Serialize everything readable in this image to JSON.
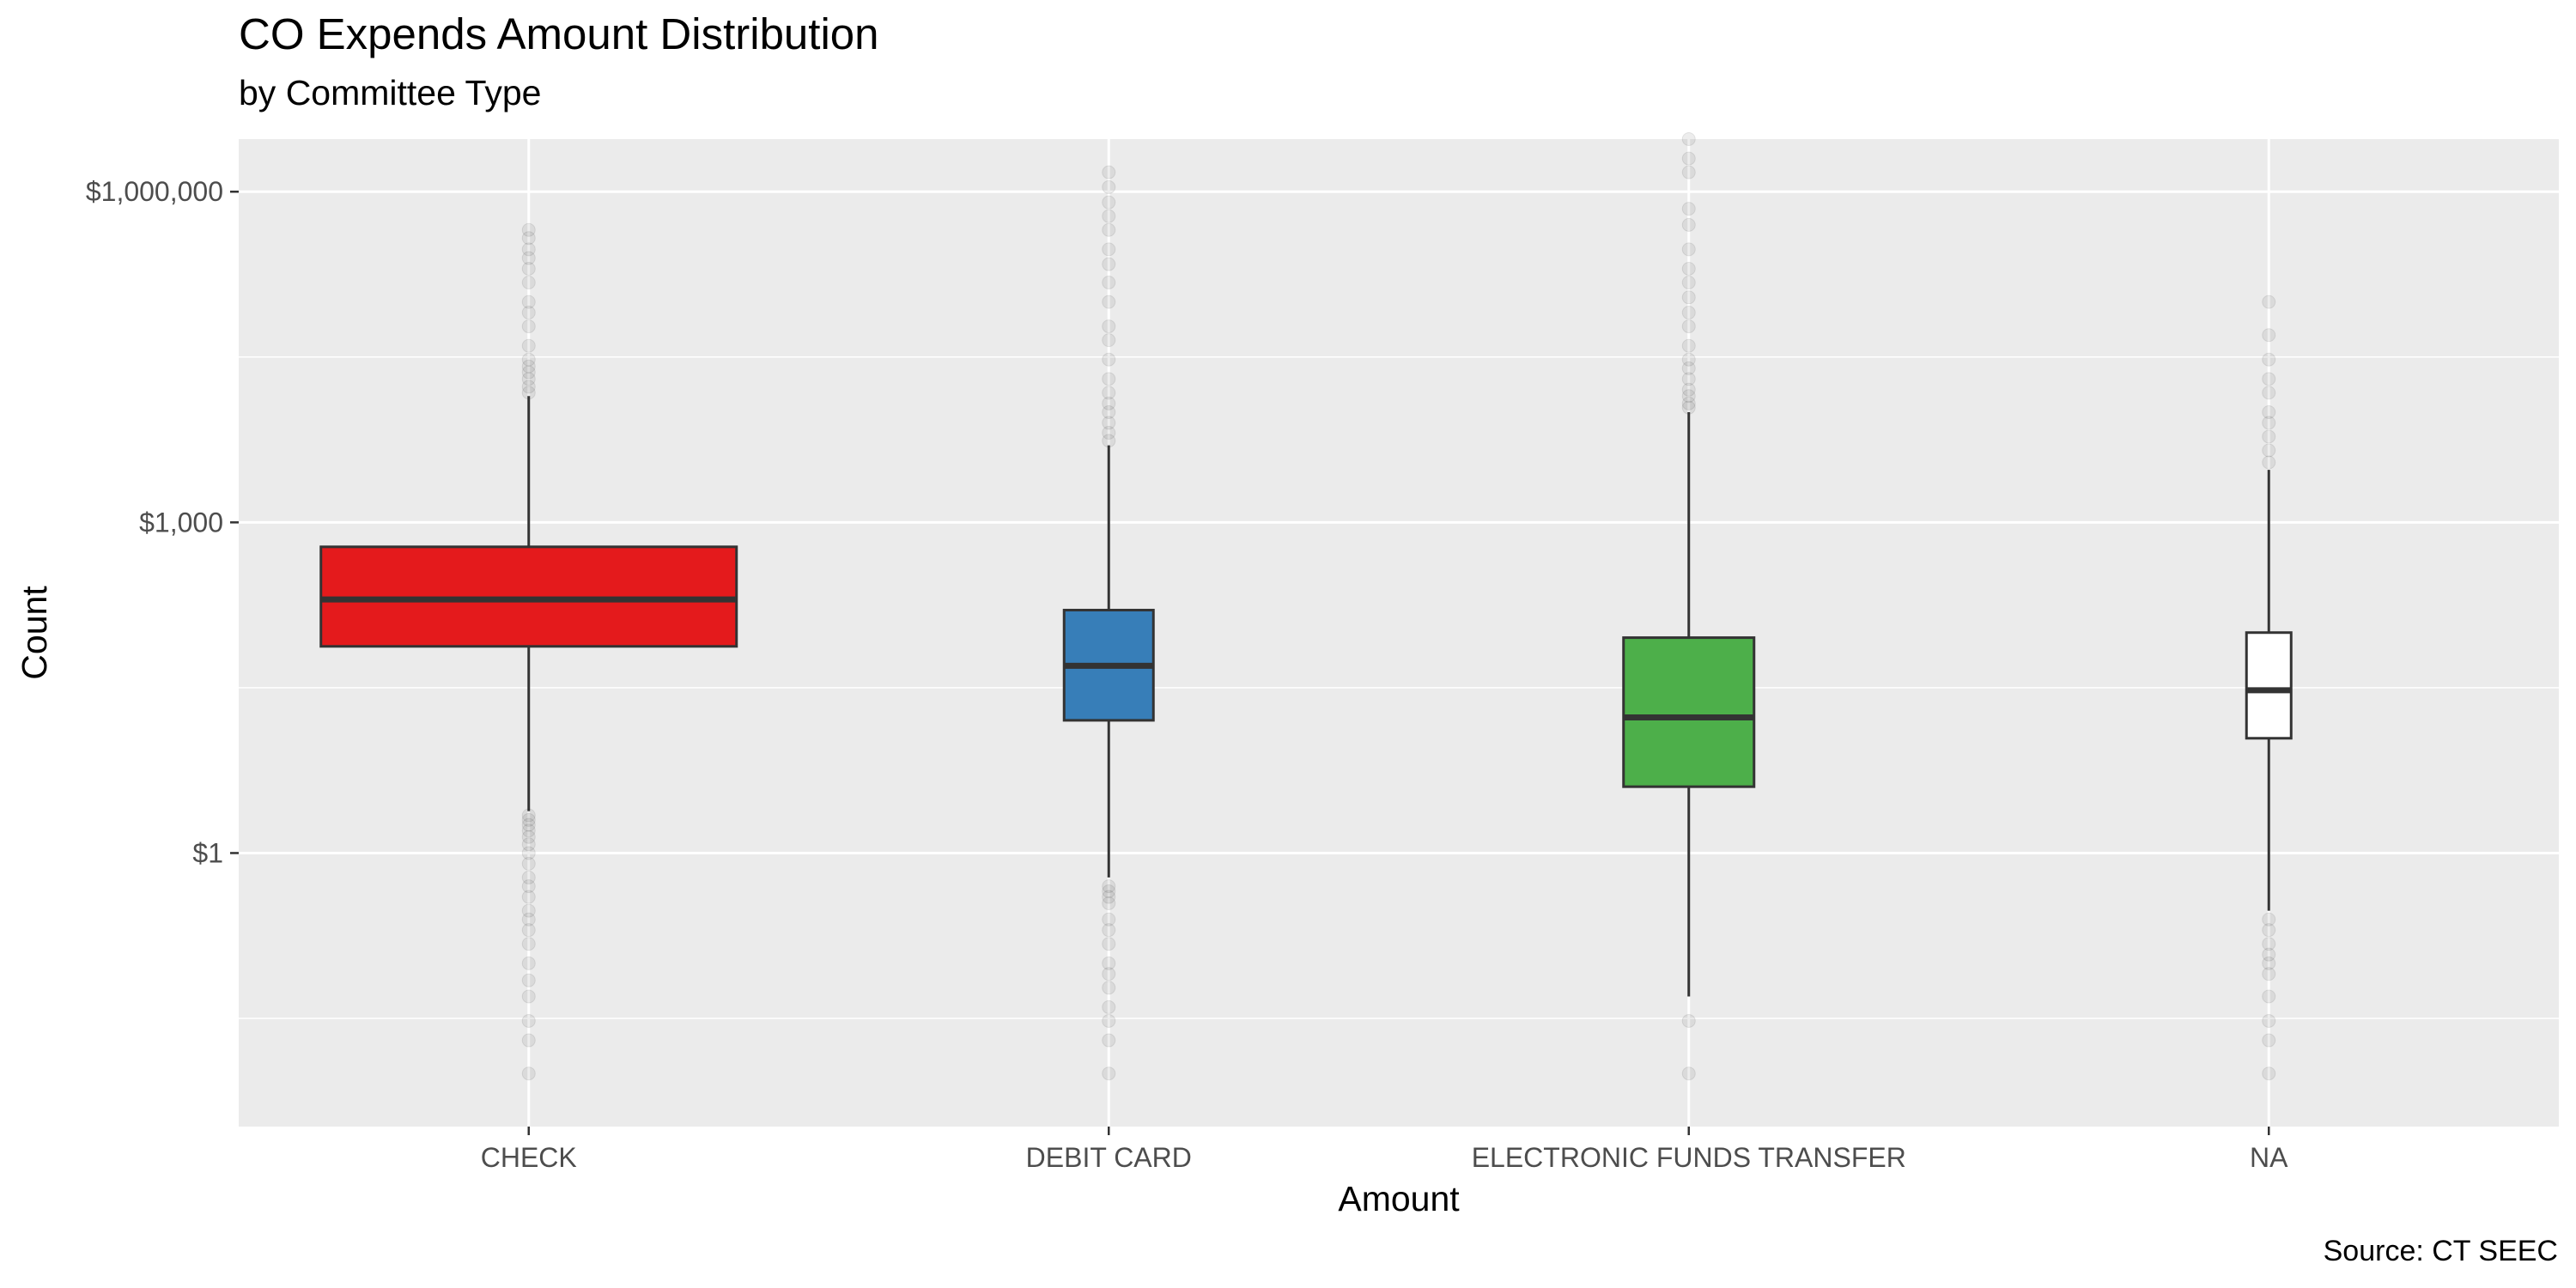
{
  "title": "CO Expends Amount Distribution",
  "subtitle": "by Committee Type",
  "caption": "Source: CT SEEC",
  "chart_data": {
    "type": "box",
    "title": "CO Expends Amount Distribution",
    "subtitle": "by Committee Type",
    "xlabel": "Amount",
    "ylabel": "Count",
    "yscale": "log10",
    "ylim": [
      0.0033,
      3000000
    ],
    "yticks": [
      {
        "value": 1,
        "label": "$1"
      },
      {
        "value": 1000,
        "label": "$1,000"
      },
      {
        "value": 1000000,
        "label": "$1,000,000"
      }
    ],
    "grid": true,
    "legend": "none",
    "categories": [
      "CHECK",
      "DEBIT CARD",
      "ELECTRONIC FUNDS TRANSFER",
      "NA"
    ],
    "boxes": [
      {
        "category": "CHECK",
        "fill": "#E41A1C",
        "min": 2.4,
        "q1": 75,
        "median": 200,
        "q3": 600,
        "max": 14000,
        "outliers": [
          2.2,
          2.0,
          1.8,
          1.6,
          1.4,
          1.2,
          1.0,
          0.8,
          0.6,
          0.5,
          0.4,
          0.3,
          0.25,
          0.2,
          0.15,
          0.1,
          0.07,
          0.05,
          0.03,
          0.02,
          0.01,
          15000,
          17000,
          20000,
          23000,
          26000,
          30000,
          40000,
          60000,
          80000,
          100000,
          150000,
          200000,
          250000,
          300000,
          380000,
          450000
        ]
      },
      {
        "category": "DEBIT CARD",
        "fill": "#377EB8",
        "min": 0.6,
        "q1": 16,
        "median": 50,
        "q3": 160,
        "max": 5000,
        "outliers": [
          0.5,
          0.45,
          0.4,
          0.35,
          0.25,
          0.2,
          0.15,
          0.1,
          0.08,
          0.06,
          0.04,
          0.03,
          0.02,
          0.01,
          5500,
          6500,
          8000,
          10000,
          12000,
          15000,
          20000,
          30000,
          45000,
          60000,
          100000,
          150000,
          220000,
          300000,
          450000,
          600000,
          800000,
          1100000,
          1500000
        ]
      },
      {
        "category": "ELECTRONIC FUNDS TRANSFER",
        "fill": "#4DAF4A",
        "min": 0.05,
        "q1": 4,
        "median": 17,
        "q3": 90,
        "max": 10000,
        "outliers": [
          0.03,
          0.01,
          11000,
          12000,
          14000,
          16000,
          20000,
          25000,
          30000,
          40000,
          60000,
          80000,
          110000,
          150000,
          200000,
          300000,
          500000,
          700000,
          1500000,
          2000000,
          3000000
        ]
      },
      {
        "category": "NA",
        "fill": "#FFFFFF",
        "min": 0.3,
        "q1": 11,
        "median": 30,
        "q3": 100,
        "max": 3000,
        "outliers": [
          0.25,
          0.2,
          0.15,
          0.12,
          0.1,
          0.08,
          0.05,
          0.03,
          0.02,
          0.01,
          3500,
          4500,
          6000,
          8000,
          10000,
          15000,
          20000,
          30000,
          50000,
          100000
        ]
      }
    ]
  }
}
